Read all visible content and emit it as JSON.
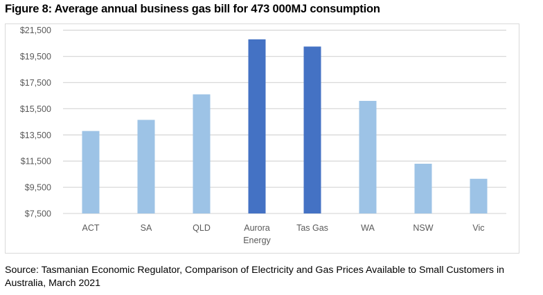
{
  "chart_data": {
    "type": "bar",
    "title": "Figure 8: Average annual business gas bill for 473 000MJ consumption",
    "categories": [
      "ACT",
      "SA",
      "QLD",
      "Aurora Energy",
      "Tas Gas",
      "WA",
      "NSW",
      "Vic"
    ],
    "category_lines": [
      [
        "ACT"
      ],
      [
        "SA"
      ],
      [
        "QLD"
      ],
      [
        "Aurora",
        "Energy"
      ],
      [
        "Tas Gas"
      ],
      [
        "WA"
      ],
      [
        "NSW"
      ],
      [
        "Vic"
      ]
    ],
    "values": [
      13800,
      14650,
      16600,
      20800,
      20250,
      16100,
      11300,
      10150
    ],
    "highlighted": [
      false,
      false,
      false,
      true,
      true,
      false,
      false,
      false
    ],
    "ylim": [
      7500,
      21500
    ],
    "yticks": [
      7500,
      9500,
      11500,
      13500,
      15500,
      17500,
      19500,
      21500
    ],
    "ytick_labels": [
      "$7,500",
      "$9,500",
      "$11,500",
      "$13,500",
      "$15,500",
      "$17,500",
      "$19,500",
      "$21,500"
    ],
    "xlabel": "",
    "ylabel": "",
    "grid": true,
    "colors": {
      "default": "#9dc3e6",
      "highlight": "#4472c4",
      "grid": "#d9d9d9"
    }
  },
  "source": "Source: Tasmanian Economic Regulator, Comparison of Electricity and Gas Prices Available to Small Customers in Australia, March 2021"
}
